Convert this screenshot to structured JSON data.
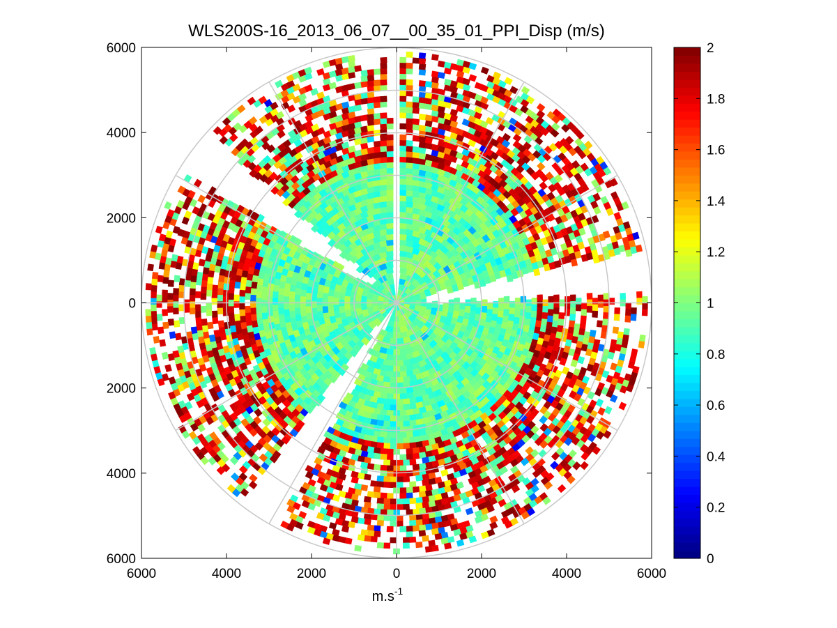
{
  "chart_data": {
    "type": "heatmap",
    "subtype": "polar-ppi",
    "title": "WLS200S-16_2013_06_07__00_35_01_PPI_Disp (m/s)",
    "xlabel": "m.s",
    "xlabel_superscript": "-1",
    "ylabel": "",
    "xlim": [
      -6000,
      6000
    ],
    "ylim": [
      -6000,
      6000
    ],
    "x_ticks": [
      -6000,
      -4000,
      -2000,
      0,
      2000,
      4000,
      6000
    ],
    "x_tick_labels": [
      "6000",
      "4000",
      "2000",
      "0",
      "2000",
      "4000",
      "6000"
    ],
    "y_ticks": [
      6000,
      4000,
      2000,
      0,
      -2000,
      -4000,
      -6000
    ],
    "y_tick_labels": [
      "6000",
      "4000",
      "2000",
      "0",
      "2000",
      "4000",
      "6000"
    ],
    "range_rings": [
      1000,
      2000,
      3000,
      4000,
      5000,
      6000
    ],
    "spoke_angles_deg": [
      0,
      30,
      60,
      90,
      120,
      150,
      180,
      210,
      240,
      270,
      300,
      330
    ],
    "max_range": 6000,
    "colorbar": {
      "colormap": "jet",
      "min": 0,
      "max": 2,
      "ticks": [
        0,
        0.2,
        0.4,
        0.6,
        0.8,
        1,
        1.2,
        1.4,
        1.6,
        1.8,
        2
      ],
      "tick_labels": [
        "0",
        "0.2",
        "0.4",
        "0.6",
        "0.8",
        "1",
        "1.2",
        "1.4",
        "1.6",
        "1.8",
        "2"
      ]
    },
    "field_summary": {
      "inner_range_m": [
        0,
        3200
      ],
      "inner_value_range": [
        0.8,
        1.1
      ],
      "outer_range_m": [
        3200,
        6000
      ],
      "outer_value_range": [
        1.2,
        2.0
      ],
      "no_data_sectors_deg": [
        [
          -2,
          1
        ],
        [
          208,
          218
        ],
        [
          302,
          312
        ],
        [
          78,
          88
        ]
      ]
    }
  }
}
